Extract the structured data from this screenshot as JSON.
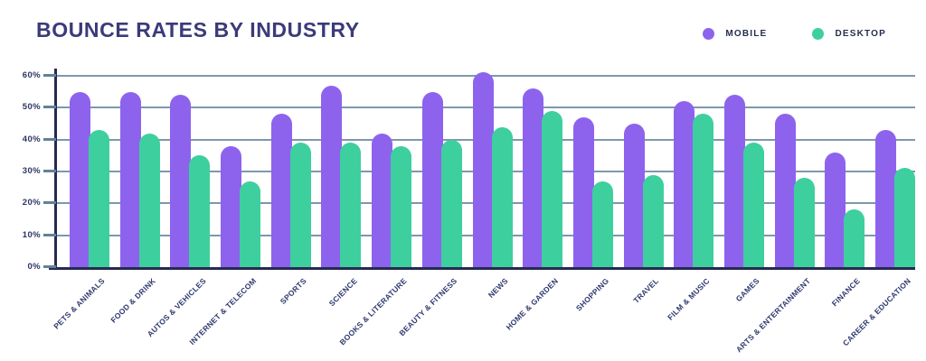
{
  "title": "BOUNCE RATES BY INDUSTRY",
  "legend": {
    "items": [
      {
        "label": "MOBILE",
        "color": "#8d63ee"
      },
      {
        "label": "DESKTOP",
        "color": "#3ecf9e"
      }
    ]
  },
  "colors": {
    "mobile_bar": "#8d63ee",
    "desktop_bar": "#3ecf9e",
    "title_text": "#3b3a7a",
    "axis_line": "#262a52",
    "gridline": "#7d98ab",
    "tick_text": "#2e3464",
    "background": "#ffffff"
  },
  "chart_data": {
    "type": "bar",
    "title": "BOUNCE RATES BY INDUSTRY",
    "categories": [
      "PETS & ANIMALS",
      "FOOD & DRINK",
      "AUTOS & VEHICLES",
      "INTERNET & TELECOM",
      "SPORTS",
      "SCIENCE",
      "BOOKS & LITERATURE",
      "BEAUTY & FITNESS",
      "NEWS",
      "HOME & GARDEN",
      "SHOPPING",
      "TRAVEL",
      "FILM & MUSIC",
      "GAMES",
      "ARTS & ENTERTAINMENT",
      "FINANCE",
      "CAREER & EDUCATION"
    ],
    "series": [
      {
        "name": "MOBILE",
        "color": "#8d63ee",
        "values": [
          55,
          55,
          54,
          38,
          48,
          57,
          42,
          55,
          61,
          56,
          47,
          45,
          52,
          54,
          48,
          36,
          43
        ]
      },
      {
        "name": "DESKTOP",
        "color": "#3ecf9e",
        "values": [
          43,
          42,
          35,
          27,
          39,
          39,
          38,
          40,
          44,
          49,
          27,
          29,
          48,
          39,
          28,
          18,
          31
        ]
      }
    ],
    "xlabel": "",
    "ylabel": "",
    "ylim": [
      0,
      60
    ],
    "y_ticks": [
      "0%",
      "10%",
      "20%",
      "30%",
      "40%",
      "50%",
      "60%"
    ],
    "grid": true,
    "legend_position": "top-right",
    "unit": "percent"
  }
}
